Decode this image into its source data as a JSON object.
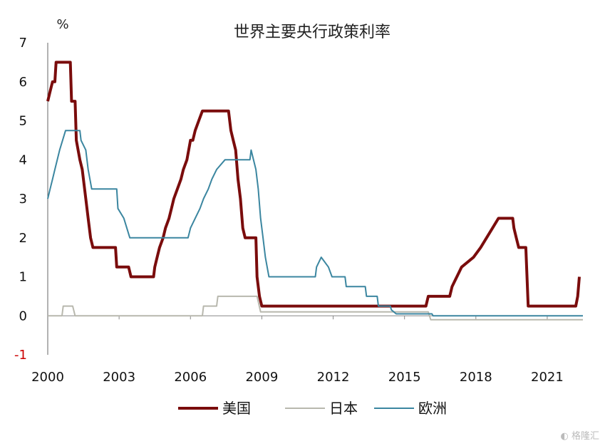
{
  "chart_data": {
    "type": "line",
    "title": "世界主要央行政策利率",
    "y_unit": "%",
    "ylim": [
      -1,
      7
    ],
    "yticks": [
      "7",
      "6",
      "5",
      "4",
      "3",
      "2",
      "1",
      "0",
      "-1"
    ],
    "xlim": [
      2000,
      2022.5
    ],
    "xticks": [
      "2000",
      "2003",
      "2006",
      "2009",
      "2012",
      "2015",
      "2018",
      "2021"
    ],
    "grid": false,
    "legend_position": "bottom",
    "series": [
      {
        "name": "美国",
        "color": "#7a0c0c",
        "points": [
          [
            2000.0,
            5.5
          ],
          [
            2000.1,
            5.75
          ],
          [
            2000.2,
            6.0
          ],
          [
            2000.3,
            6.0
          ],
          [
            2000.35,
            6.5
          ],
          [
            2000.95,
            6.5
          ],
          [
            2001.0,
            5.5
          ],
          [
            2001.15,
            5.5
          ],
          [
            2001.2,
            4.5
          ],
          [
            2001.35,
            4.0
          ],
          [
            2001.45,
            3.75
          ],
          [
            2001.6,
            3.0
          ],
          [
            2001.7,
            2.5
          ],
          [
            2001.8,
            2.0
          ],
          [
            2001.9,
            1.75
          ],
          [
            2002.85,
            1.75
          ],
          [
            2002.9,
            1.25
          ],
          [
            2003.4,
            1.25
          ],
          [
            2003.5,
            1.0
          ],
          [
            2004.45,
            1.0
          ],
          [
            2004.5,
            1.25
          ],
          [
            2004.6,
            1.5
          ],
          [
            2004.7,
            1.75
          ],
          [
            2004.85,
            2.0
          ],
          [
            2004.95,
            2.25
          ],
          [
            2005.1,
            2.5
          ],
          [
            2005.2,
            2.75
          ],
          [
            2005.3,
            3.0
          ],
          [
            2005.45,
            3.25
          ],
          [
            2005.6,
            3.5
          ],
          [
            2005.7,
            3.75
          ],
          [
            2005.85,
            4.0
          ],
          [
            2006.0,
            4.5
          ],
          [
            2006.1,
            4.5
          ],
          [
            2006.2,
            4.75
          ],
          [
            2006.35,
            5.0
          ],
          [
            2006.5,
            5.25
          ],
          [
            2007.6,
            5.25
          ],
          [
            2007.7,
            4.75
          ],
          [
            2007.8,
            4.5
          ],
          [
            2007.9,
            4.25
          ],
          [
            2008.0,
            3.5
          ],
          [
            2008.1,
            3.0
          ],
          [
            2008.2,
            2.25
          ],
          [
            2008.3,
            2.0
          ],
          [
            2008.75,
            2.0
          ],
          [
            2008.8,
            1.0
          ],
          [
            2008.9,
            0.5
          ],
          [
            2009.0,
            0.25
          ],
          [
            2015.9,
            0.25
          ],
          [
            2016.0,
            0.5
          ],
          [
            2016.9,
            0.5
          ],
          [
            2017.0,
            0.75
          ],
          [
            2017.2,
            1.0
          ],
          [
            2017.4,
            1.25
          ],
          [
            2017.9,
            1.5
          ],
          [
            2018.2,
            1.75
          ],
          [
            2018.45,
            2.0
          ],
          [
            2018.7,
            2.25
          ],
          [
            2018.95,
            2.5
          ],
          [
            2019.55,
            2.5
          ],
          [
            2019.6,
            2.25
          ],
          [
            2019.7,
            2.0
          ],
          [
            2019.8,
            1.75
          ],
          [
            2020.1,
            1.75
          ],
          [
            2020.2,
            0.25
          ],
          [
            2022.2,
            0.25
          ],
          [
            2022.28,
            0.5
          ],
          [
            2022.35,
            1.0
          ]
        ]
      },
      {
        "name": "日本",
        "color": "#b8b8ae",
        "points": [
          [
            2000.0,
            0.0
          ],
          [
            2000.6,
            0.0
          ],
          [
            2000.65,
            0.25
          ],
          [
            2001.05,
            0.25
          ],
          [
            2001.15,
            0.0
          ],
          [
            2006.5,
            0.0
          ],
          [
            2006.55,
            0.25
          ],
          [
            2007.1,
            0.25
          ],
          [
            2007.15,
            0.5
          ],
          [
            2008.8,
            0.5
          ],
          [
            2008.95,
            0.1
          ],
          [
            2016.0,
            0.1
          ],
          [
            2016.1,
            -0.1
          ],
          [
            2022.5,
            -0.1
          ]
        ]
      },
      {
        "name": "欧洲",
        "color": "#3b86a0",
        "points": [
          [
            2000.0,
            3.0
          ],
          [
            2000.1,
            3.25
          ],
          [
            2000.2,
            3.5
          ],
          [
            2000.3,
            3.75
          ],
          [
            2000.5,
            4.25
          ],
          [
            2000.75,
            4.75
          ],
          [
            2001.35,
            4.75
          ],
          [
            2001.4,
            4.5
          ],
          [
            2001.6,
            4.25
          ],
          [
            2001.7,
            3.75
          ],
          [
            2001.85,
            3.25
          ],
          [
            2002.9,
            3.25
          ],
          [
            2002.95,
            2.75
          ],
          [
            2003.2,
            2.5
          ],
          [
            2003.45,
            2.0
          ],
          [
            2005.9,
            2.0
          ],
          [
            2006.0,
            2.25
          ],
          [
            2006.2,
            2.5
          ],
          [
            2006.4,
            2.75
          ],
          [
            2006.55,
            3.0
          ],
          [
            2006.75,
            3.25
          ],
          [
            2006.9,
            3.5
          ],
          [
            2007.1,
            3.75
          ],
          [
            2007.45,
            4.0
          ],
          [
            2008.5,
            4.0
          ],
          [
            2008.55,
            4.25
          ],
          [
            2008.75,
            3.75
          ],
          [
            2008.85,
            3.25
          ],
          [
            2008.95,
            2.5
          ],
          [
            2009.05,
            2.0
          ],
          [
            2009.15,
            1.5
          ],
          [
            2009.3,
            1.0
          ],
          [
            2011.25,
            1.0
          ],
          [
            2011.3,
            1.25
          ],
          [
            2011.5,
            1.5
          ],
          [
            2011.8,
            1.25
          ],
          [
            2011.95,
            1.0
          ],
          [
            2012.5,
            1.0
          ],
          [
            2012.55,
            0.75
          ],
          [
            2013.35,
            0.75
          ],
          [
            2013.4,
            0.5
          ],
          [
            2013.85,
            0.5
          ],
          [
            2013.9,
            0.25
          ],
          [
            2014.4,
            0.25
          ],
          [
            2014.45,
            0.15
          ],
          [
            2014.65,
            0.05
          ],
          [
            2016.15,
            0.05
          ],
          [
            2016.2,
            0.0
          ],
          [
            2022.5,
            0.0
          ]
        ]
      }
    ]
  }
}
